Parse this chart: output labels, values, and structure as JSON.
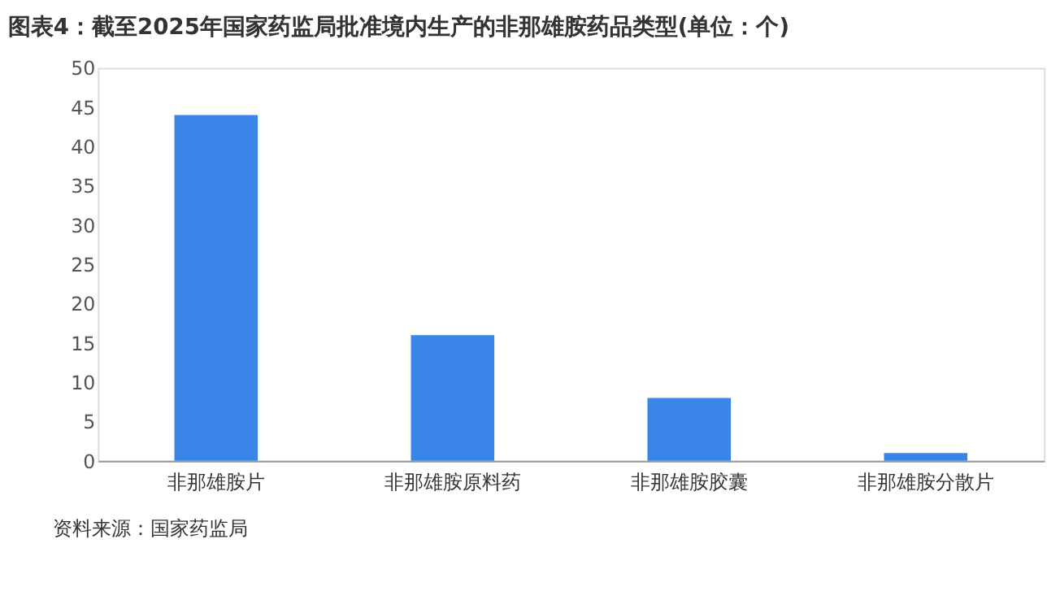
{
  "chart_data": {
    "type": "bar",
    "title": "图表4：截至2025年国家药监局批准境内生产的非那雄胺药品类型(单位：个)",
    "categories": [
      "非那雄胺片",
      "非那雄胺原料药",
      "非那雄胺胶囊",
      "非那雄胺分散片"
    ],
    "values": [
      44,
      16,
      8,
      1
    ],
    "color": "#3a86e8",
    "ylim": [
      0,
      50
    ],
    "yticks": [
      0,
      5,
      10,
      15,
      20,
      25,
      30,
      35,
      40,
      45,
      50
    ],
    "grid": false,
    "annotations": [
      "资料来源：国家药监局"
    ]
  }
}
